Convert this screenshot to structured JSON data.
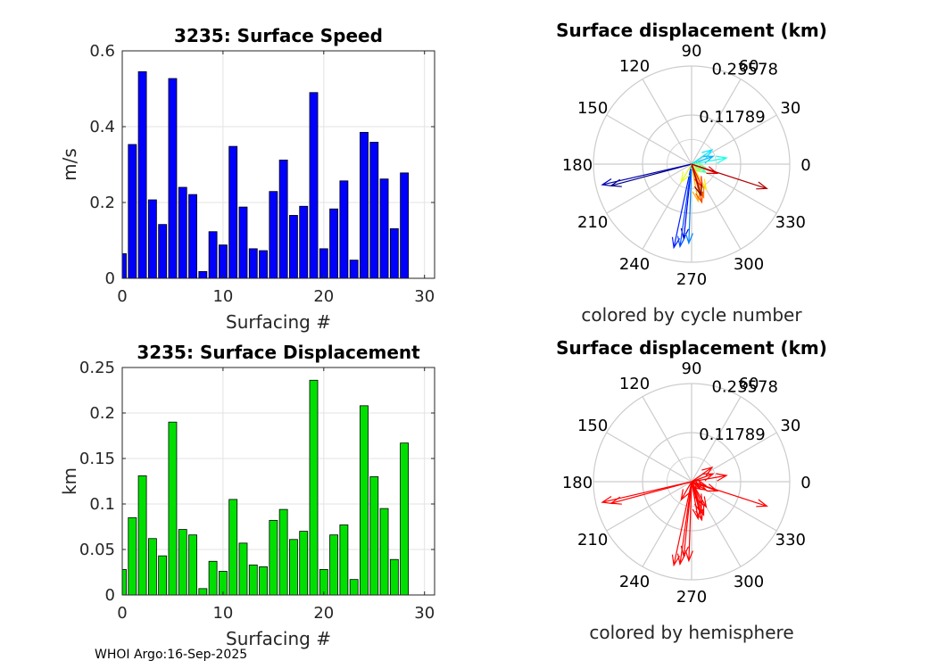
{
  "footer": "WHOI Argo:16-Sep-2025",
  "chart_data": [
    {
      "type": "bar",
      "title": "3235: Surface Speed",
      "xlabel": "Surfacing #",
      "ylabel": "m/s",
      "xlim": [
        0,
        31
      ],
      "ylim": [
        0,
        0.6
      ],
      "xticks": [
        "0",
        "10",
        "20",
        "30"
      ],
      "yticks": [
        "0",
        "0.2",
        "0.4",
        "0.6"
      ],
      "grid": true,
      "bar_color": "#0000ff",
      "x": [
        0,
        1,
        2,
        3,
        4,
        5,
        6,
        7,
        8,
        9,
        10,
        11,
        12,
        13,
        14,
        15,
        16,
        17,
        18,
        19,
        20,
        21,
        22,
        23,
        24,
        25,
        26,
        27,
        28
      ],
      "values": [
        0.065,
        0.353,
        0.545,
        0.207,
        0.142,
        0.527,
        0.24,
        0.221,
        0.018,
        0.123,
        0.088,
        0.348,
        0.188,
        0.078,
        0.073,
        0.229,
        0.312,
        0.166,
        0.19,
        0.49,
        0.078,
        0.183,
        0.257,
        0.048,
        0.385,
        0.359,
        0.262,
        0.131,
        0.278
      ]
    },
    {
      "type": "bar",
      "title": "3235: Surface Displacement",
      "xlabel": "Surfacing #",
      "ylabel": "km",
      "xlim": [
        0,
        31
      ],
      "ylim": [
        0,
        0.25
      ],
      "xticks": [
        "0",
        "10",
        "20",
        "30"
      ],
      "yticks": [
        "0",
        "0.05",
        "0.1",
        "0.15",
        "0.2",
        "0.25"
      ],
      "grid": true,
      "bar_color": "#00e000",
      "x": [
        0,
        1,
        2,
        3,
        4,
        5,
        6,
        7,
        8,
        9,
        10,
        11,
        12,
        13,
        14,
        15,
        16,
        17,
        18,
        19,
        20,
        21,
        22,
        23,
        24,
        25,
        26,
        27,
        28
      ],
      "values": [
        0.028,
        0.085,
        0.131,
        0.062,
        0.043,
        0.19,
        0.072,
        0.066,
        0.007,
        0.037,
        0.026,
        0.105,
        0.057,
        0.033,
        0.031,
        0.082,
        0.094,
        0.061,
        0.07,
        0.236,
        0.028,
        0.066,
        0.077,
        0.017,
        0.208,
        0.13,
        0.095,
        0.039,
        0.167
      ]
    },
    {
      "type": "polar",
      "title": "Surface displacement (km)",
      "subtitle": "colored by cycle number",
      "rmax": 0.23578,
      "r_ticks": [
        "0.11789",
        "0.23578"
      ],
      "angle_ticks": [
        "0",
        "30",
        "60",
        "90",
        "120",
        "150",
        "180",
        "210",
        "240",
        "270",
        "300",
        "330"
      ],
      "coloring": "cycle",
      "vectors": [
        {
          "angle": 195,
          "r": 0.2
        },
        {
          "angle": 193,
          "r": 0.22
        },
        {
          "angle": 264,
          "r": 0.18
        },
        {
          "angle": 258,
          "r": 0.205
        },
        {
          "angle": 262,
          "r": 0.2
        },
        {
          "angle": 268,
          "r": 0.19
        },
        {
          "angle": 20,
          "r": 0.055
        },
        {
          "angle": 35,
          "r": 0.06
        },
        {
          "angle": 10,
          "r": 0.085
        },
        {
          "angle": 330,
          "r": 0.04
        },
        {
          "angle": 345,
          "r": 0.035
        },
        {
          "angle": 320,
          "r": 0.028
        },
        {
          "angle": 240,
          "r": 0.05
        },
        {
          "angle": 300,
          "r": 0.07
        },
        {
          "angle": 280,
          "r": 0.09
        },
        {
          "angle": 290,
          "r": 0.085
        },
        {
          "angle": 285,
          "r": 0.095
        },
        {
          "angle": 295,
          "r": 0.06
        },
        {
          "angle": 340,
          "r": 0.065
        },
        {
          "angle": 342,
          "r": 0.19
        },
        {
          "angle": 287,
          "r": 0.078
        }
      ]
    },
    {
      "type": "polar",
      "title": "Surface displacement (km)",
      "subtitle": "colored by hemisphere",
      "rmax": 0.23578,
      "r_ticks": [
        "0.11789",
        "0.23578"
      ],
      "angle_ticks": [
        "0",
        "30",
        "60",
        "90",
        "120",
        "150",
        "180",
        "210",
        "240",
        "270",
        "300",
        "330"
      ],
      "coloring": "hemisphere",
      "vector_color": "#ff0000",
      "vectors": [
        {
          "angle": 195,
          "r": 0.2
        },
        {
          "angle": 193,
          "r": 0.22
        },
        {
          "angle": 264,
          "r": 0.18
        },
        {
          "angle": 258,
          "r": 0.205
        },
        {
          "angle": 262,
          "r": 0.2
        },
        {
          "angle": 268,
          "r": 0.19
        },
        {
          "angle": 20,
          "r": 0.055
        },
        {
          "angle": 35,
          "r": 0.06
        },
        {
          "angle": 10,
          "r": 0.085
        },
        {
          "angle": 330,
          "r": 0.04
        },
        {
          "angle": 345,
          "r": 0.035
        },
        {
          "angle": 320,
          "r": 0.028
        },
        {
          "angle": 240,
          "r": 0.05
        },
        {
          "angle": 300,
          "r": 0.07
        },
        {
          "angle": 280,
          "r": 0.09
        },
        {
          "angle": 290,
          "r": 0.085
        },
        {
          "angle": 285,
          "r": 0.095
        },
        {
          "angle": 295,
          "r": 0.06
        },
        {
          "angle": 340,
          "r": 0.065
        },
        {
          "angle": 342,
          "r": 0.19
        },
        {
          "angle": 287,
          "r": 0.078
        }
      ]
    }
  ]
}
